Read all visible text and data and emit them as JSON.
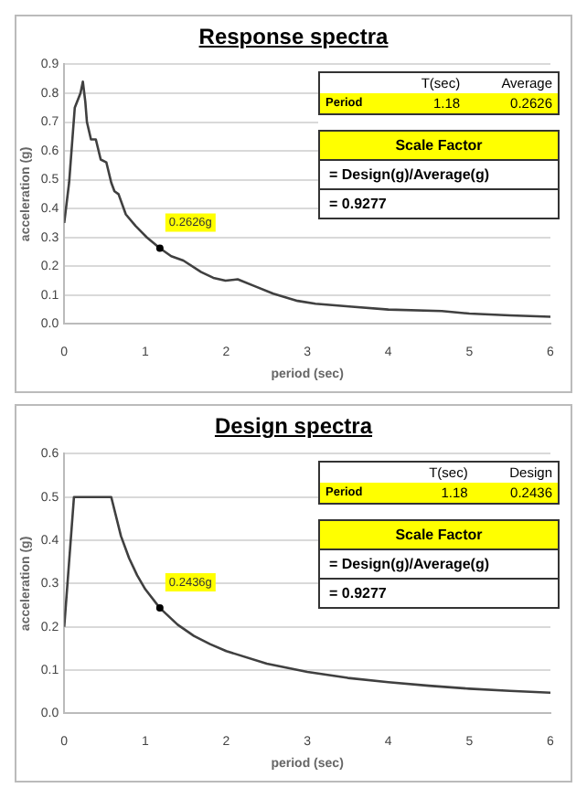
{
  "chart_data": [
    {
      "type": "line",
      "title": "Response spectra",
      "xlabel": "period (sec)",
      "ylabel": "acceleration (g)",
      "xlim": [
        0,
        6
      ],
      "xticks": [
        0,
        1,
        2,
        3,
        4,
        5,
        6
      ],
      "ylim": [
        0,
        0.9
      ],
      "yticks": [
        {
          "value": 0,
          "label": "0.0"
        },
        0.1,
        0.2,
        0.3,
        0.4,
        0.5,
        0.6,
        0.7,
        0.8,
        0.9
      ],
      "grid": "y",
      "marker": "none",
      "line_style": "solid",
      "legend": false,
      "series": [
        {
          "color": "#404040",
          "x": [
            0,
            0.06,
            0.13,
            0.2,
            0.23,
            0.26,
            0.28,
            0.33,
            0.39,
            0.45,
            0.52,
            0.58,
            0.62,
            0.67,
            0.76,
            0.88,
            1.02,
            1.18,
            1.32,
            1.47,
            1.69,
            1.84,
            1.99,
            2.14,
            2.36,
            2.58,
            2.88,
            3.1,
            3.55,
            4.0,
            4.66,
            5.0,
            5.5,
            6
          ],
          "values": [
            0.35,
            0.49,
            0.75,
            0.8,
            0.84,
            0.77,
            0.7,
            0.64,
            0.64,
            0.57,
            0.56,
            0.49,
            0.46,
            0.45,
            0.38,
            0.34,
            0.3,
            0.2626,
            0.235,
            0.22,
            0.18,
            0.16,
            0.15,
            0.155,
            0.13,
            0.105,
            0.08,
            0.07,
            0.06,
            0.05,
            0.045,
            0.036,
            0.03,
            0.025
          ]
        }
      ],
      "annotations": [
        {
          "text": "0.2626g",
          "x": 1.18,
          "y": 0.2626
        },
        "T(sec)",
        "Average",
        "Period",
        "1.18",
        "0.2626",
        "Scale Factor",
        "= Design(g)/Average(g)",
        "=  0.9277"
      ]
    },
    {
      "type": "line",
      "title": "Design spectra",
      "xlabel": "period (sec)",
      "ylabel": "acceleration (g)",
      "xlim": [
        0,
        6
      ],
      "xticks": [
        0,
        1,
        2,
        3,
        4,
        5,
        6
      ],
      "ylim": [
        0,
        0.6
      ],
      "yticks": [
        {
          "value": 0,
          "label": "0.0"
        },
        0.1,
        0.2,
        0.3,
        0.4,
        0.5,
        0.6
      ],
      "grid": "y",
      "marker": "none",
      "line_style": "solid",
      "legend": false,
      "series": [
        {
          "color": "#404040",
          "x": [
            0,
            0.12,
            0.58,
            0.7,
            0.8,
            0.9,
            1.0,
            1.18,
            1.4,
            1.6,
            1.8,
            2,
            2.5,
            3,
            3.5,
            4,
            4.5,
            5,
            5.5,
            6
          ],
          "values": [
            0.2,
            0.5,
            0.5,
            0.41,
            0.359,
            0.319,
            0.287,
            0.2436,
            0.205,
            0.179,
            0.16,
            0.144,
            0.115,
            0.096,
            0.082,
            0.072,
            0.064,
            0.057,
            0.052,
            0.048
          ]
        }
      ],
      "annotations": [
        {
          "text": "0.2436g",
          "x": 1.18,
          "y": 0.2436
        },
        "T(sec)",
        "Design",
        "Period",
        "1.18",
        "0.2436",
        "Scale Factor",
        "= Design(g)/Average(g)",
        "=  0.9277"
      ]
    }
  ]
}
